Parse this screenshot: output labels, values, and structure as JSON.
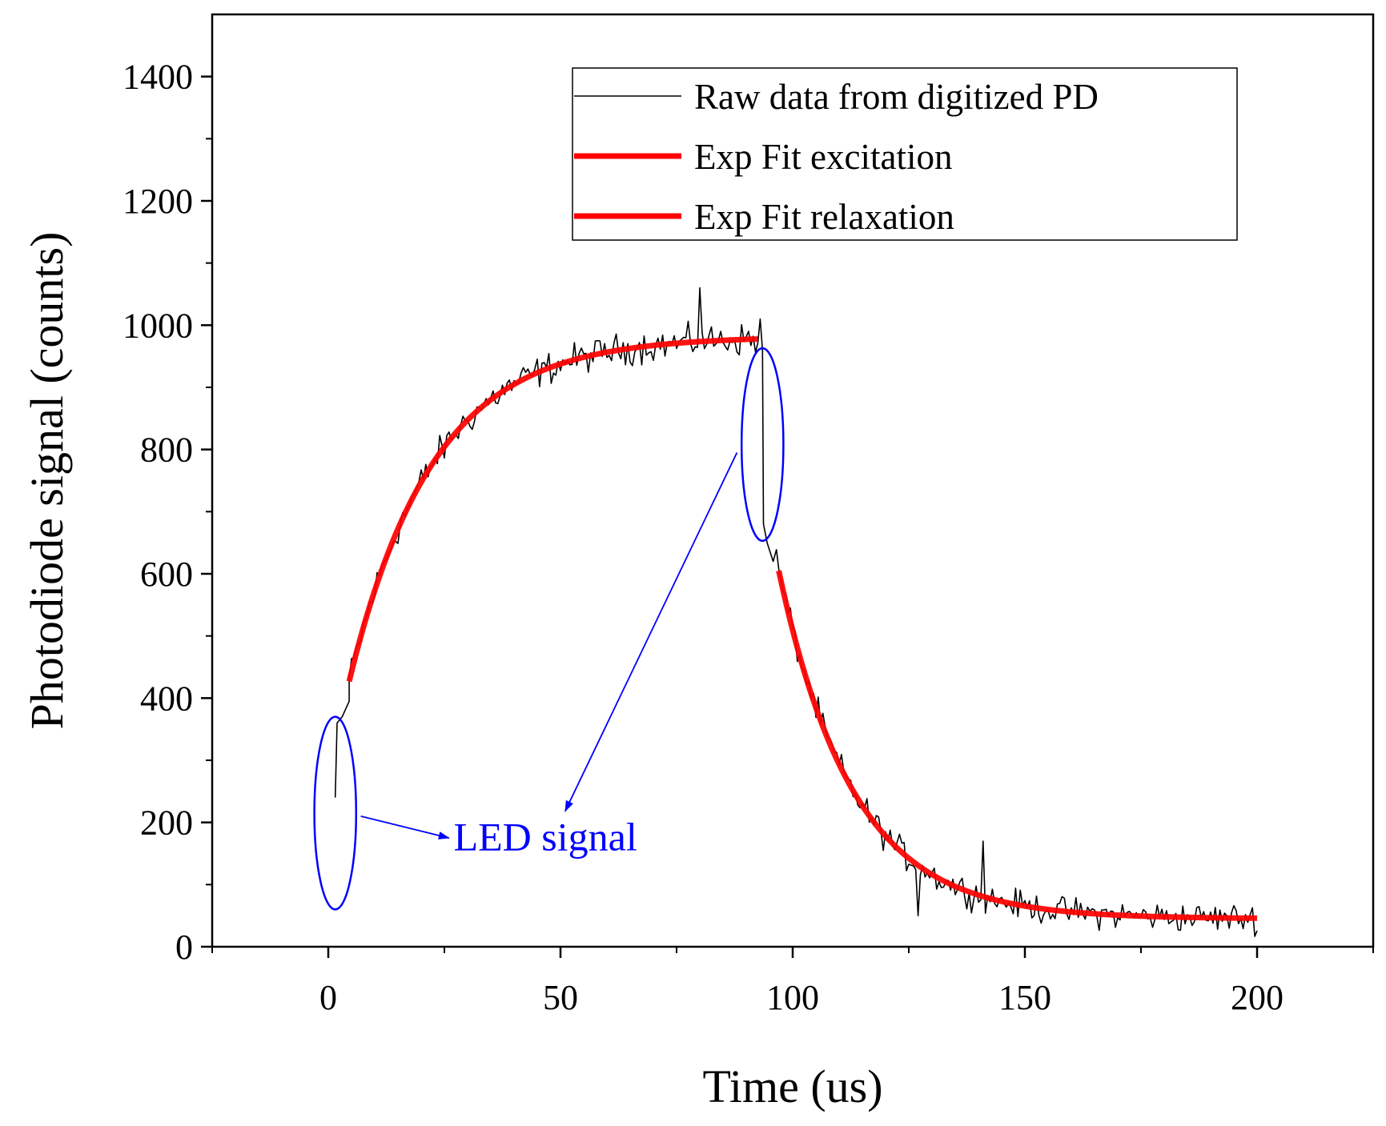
{
  "chart_data": {
    "type": "line",
    "title": "",
    "xlabel": "Time (us)",
    "ylabel": "Photodiode signal (counts)",
    "xlim": [
      -25,
      225
    ],
    "ylim": [
      0,
      1500
    ],
    "xticks": [
      0,
      50,
      100,
      150,
      200
    ],
    "yticks": [
      0,
      200,
      400,
      600,
      800,
      1000,
      1200,
      1400
    ],
    "xtick_labels": [
      "0",
      "50",
      "100",
      "150",
      "200"
    ],
    "ytick_labels": [
      "0",
      "200",
      "400",
      "600",
      "800",
      "1000",
      "1200",
      "1400"
    ],
    "legend_position": "top-right",
    "series": [
      {
        "name": "Raw data from digitized PD",
        "kind": "raw",
        "color": "#000000",
        "baseline_start": 60,
        "led_on_time": 1.5,
        "led_off_time": 93.5,
        "end_time": 200,
        "sample_step": 0.5,
        "approx_noise_amplitude": 22,
        "spikes": [
          {
            "x": 80,
            "y": 1060
          },
          {
            "x": 93,
            "y": 1010
          },
          {
            "x": 141,
            "y": 170
          },
          {
            "x": 127,
            "y": 50
          }
        ]
      },
      {
        "name": "Exp Fit excitation",
        "kind": "fit",
        "color": "#ff0000",
        "model": "y = A - B*exp(-(x - x0)/tau)",
        "x_range": [
          4.5,
          92.5
        ],
        "A": 982,
        "B": 555,
        "x0": 4.5,
        "tau": 18
      },
      {
        "name": "Exp Fit relaxation",
        "kind": "fit",
        "color": "#ff0000",
        "model": "y = C + D*exp(-(x - x0)/tau)",
        "x_range": [
          97,
          200
        ],
        "C": 45,
        "D": 560,
        "x0": 97,
        "tau": 16
      }
    ],
    "annotations": [
      {
        "label": "LED signal",
        "color": "#0000ff",
        "ellipses": [
          {
            "cx": 1.5,
            "cy": 215,
            "rx": 4.5,
            "ry": 155
          },
          {
            "cx": 93.5,
            "cy": 808,
            "rx": 4.5,
            "ry": 155
          }
        ],
        "text_at": {
          "x": 27,
          "y": 155
        },
        "arrows": [
          {
            "from": {
              "x": 7,
              "y": 210
            },
            "to": {
              "x": 26,
              "y": 175
            }
          },
          {
            "from": {
              "x": 88,
              "y": 795
            },
            "to": {
              "x": 51,
              "y": 218
            }
          }
        ]
      }
    ]
  }
}
